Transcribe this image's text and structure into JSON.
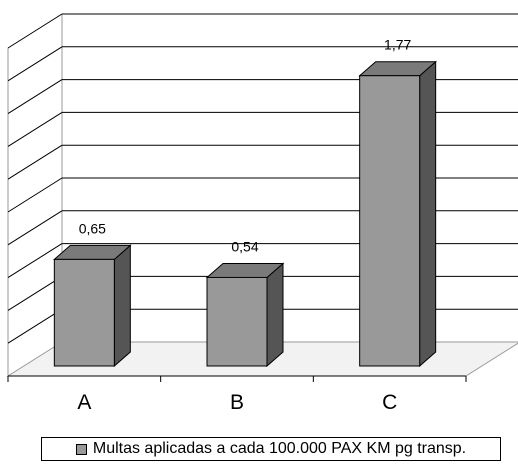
{
  "chart_data": {
    "type": "bar",
    "categories": [
      "A",
      "B",
      "C"
    ],
    "series": [
      {
        "name": "Multas aplicadas a cada 100.000 PAX KM pg transp.",
        "values": [
          0.65,
          0.54,
          1.77
        ]
      }
    ],
    "data_labels": [
      "0,65",
      "0,54",
      "1,77"
    ],
    "ylim": [
      0,
      2
    ],
    "grid": true,
    "legend_position": "bottom",
    "colors": {
      "bar_front": "#999999",
      "bar_top": "#7a7a7a",
      "bar_side": "#555555",
      "floor": "#f2f2f2"
    }
  }
}
